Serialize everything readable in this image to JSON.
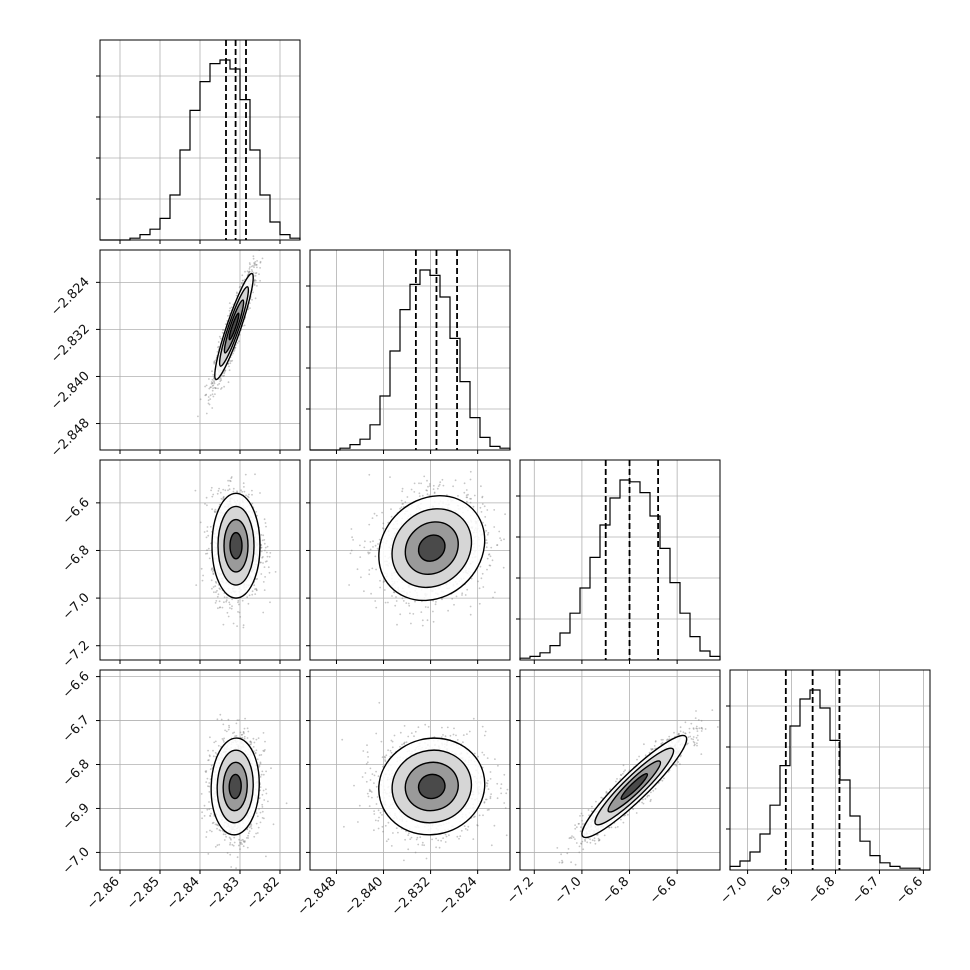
{
  "chart_data": {
    "type": "corner",
    "grid": true,
    "colors": {
      "hist": "#000000",
      "grid": "#b0b0b0",
      "points": "#808080"
    },
    "parameters": [
      {
        "range": [
          -2.865,
          -2.815
        ],
        "ticks": [
          -2.86,
          -2.85,
          -2.84,
          -2.83,
          -2.82
        ],
        "tick_labels": [
          "−2.86",
          "−2.85",
          "−2.84",
          "−2.83",
          "−2.82"
        ],
        "quantiles": [
          -2.8335,
          -2.8311,
          -2.8285
        ]
      },
      {
        "range": [
          -2.8525,
          -2.8185
        ],
        "ticks": [
          -2.848,
          -2.84,
          -2.832,
          -2.824
        ],
        "tick_labels": [
          "−2.848",
          "−2.840",
          "−2.832",
          "−2.824"
        ],
        "quantiles": [
          -2.8345,
          -2.831,
          -2.8275
        ]
      },
      {
        "range": [
          -7.26,
          -6.42
        ],
        "ticks": [
          -7.2,
          -7.0,
          -6.8,
          -6.6
        ],
        "tick_labels": [
          "−7.2",
          "−7.0",
          "−6.8",
          "−6.6"
        ],
        "quantiles": [
          -6.9,
          -6.8,
          -6.68
        ]
      },
      {
        "range": [
          -7.04,
          -6.585
        ],
        "ticks": [
          -7.0,
          -6.9,
          -6.8,
          -6.7,
          -6.6
        ],
        "tick_labels": [
          "−7.0",
          "−6.9",
          "−6.8",
          "−6.7",
          "−6.6"
        ],
        "quantiles": [
          -6.913,
          -6.852,
          -6.791
        ]
      }
    ],
    "histograms": [
      [
        0,
        0,
        0,
        0.01,
        0.03,
        0.06,
        0.12,
        0.25,
        0.5,
        0.72,
        0.88,
        0.98,
        1.0,
        0.95,
        0.78,
        0.5,
        0.25,
        0.1,
        0.03,
        0.01
      ],
      [
        0,
        0,
        0,
        0.01,
        0.03,
        0.06,
        0.14,
        0.3,
        0.55,
        0.78,
        0.92,
        1.0,
        0.97,
        0.85,
        0.62,
        0.38,
        0.18,
        0.07,
        0.02,
        0.01
      ],
      [
        0.01,
        0.02,
        0.04,
        0.08,
        0.15,
        0.26,
        0.4,
        0.57,
        0.75,
        0.9,
        1.0,
        0.99,
        0.93,
        0.8,
        0.62,
        0.43,
        0.26,
        0.13,
        0.05,
        0.02
      ],
      [
        0.02,
        0.05,
        0.1,
        0.2,
        0.36,
        0.58,
        0.8,
        0.95,
        1.0,
        0.9,
        0.72,
        0.5,
        0.3,
        0.16,
        0.08,
        0.04,
        0.02,
        0.01,
        0.01,
        0
      ]
    ],
    "pairs": [
      {
        "x": 0,
        "y": 1,
        "x_center": -2.8315,
        "y_center": -2.8315,
        "x_std": 0.0024,
        "y_std": 0.0045,
        "corr": 0.92
      },
      {
        "x": 0,
        "y": 2,
        "x_center": -2.831,
        "y_center": -6.78,
        "x_std": 0.003,
        "y_std": 0.11,
        "corr": 0.0
      },
      {
        "x": 0,
        "y": 3,
        "x_center": -2.8312,
        "y_center": -6.85,
        "x_std": 0.003,
        "y_std": 0.055,
        "corr": 0.05
      },
      {
        "x": 1,
        "y": 2,
        "x_center": -2.8318,
        "y_center": -6.79,
        "x_std": 0.0045,
        "y_std": 0.11,
        "corr": 0.15
      },
      {
        "x": 1,
        "y": 3,
        "x_center": -2.8318,
        "y_center": -6.85,
        "x_std": 0.0045,
        "y_std": 0.055,
        "corr": 0.05
      },
      {
        "x": 2,
        "y": 3,
        "x_center": -6.78,
        "y_center": -6.85,
        "x_std": 0.11,
        "y_std": 0.058,
        "corr": 0.93
      }
    ]
  }
}
